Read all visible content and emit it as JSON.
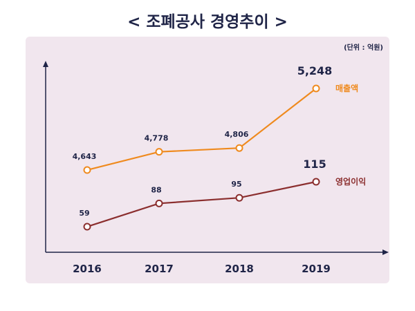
{
  "title": "< 조폐공사 경영추이 >",
  "chart_data": {
    "type": "line",
    "title": "< 조폐공사 경영추이 >",
    "unit": "(단위 : 억원)",
    "categories": [
      "2016",
      "2017",
      "2018",
      "2019"
    ],
    "series": [
      {
        "name": "매출액",
        "values": [
          4643,
          4778,
          4806,
          5248
        ],
        "labels": [
          "4,643",
          "4,778",
          "4,806",
          "5,248"
        ],
        "color": "#ef8a1e"
      },
      {
        "name": "영업이익",
        "values": [
          59,
          88,
          95,
          115
        ],
        "labels": [
          "59",
          "88",
          "95",
          "115"
        ],
        "color": "#8b2e2e"
      }
    ],
    "grid": false,
    "legend": "right, at line ends"
  }
}
